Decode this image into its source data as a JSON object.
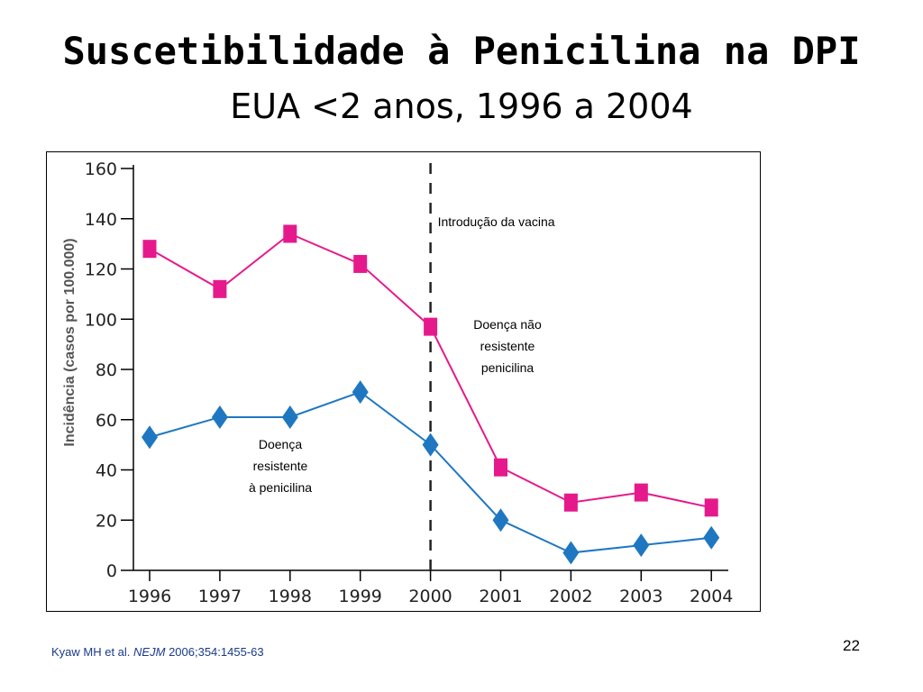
{
  "slide": {
    "title": "Suscetibilidade à Penicilina na DPI",
    "subtitle": "EUA <2 anos, 1996 a 2004",
    "page_number": "22",
    "citation": {
      "authors": "Kyaw MH et al.",
      "journal": "NEJM",
      "details": "2006;354:1455-63"
    }
  },
  "chart_data": {
    "type": "line",
    "title": "",
    "xlabel": "",
    "ylabel": "Incidência (casos por 100.000)",
    "x": [
      "1996",
      "1997",
      "1998",
      "1999",
      "2000",
      "2001",
      "2002",
      "2003",
      "2004"
    ],
    "ylim": [
      0,
      160
    ],
    "yticks": [
      "0",
      "20",
      "40",
      "60",
      "80",
      "100",
      "120",
      "140",
      "160"
    ],
    "grid": false,
    "series": [
      {
        "values": [
          128,
          112,
          134,
          122,
          97,
          41,
          27,
          31,
          25
        ],
        "color": "#e6198c",
        "marker": "square"
      },
      {
        "values": [
          53,
          61,
          61,
          71,
          50,
          20,
          7,
          10,
          13
        ],
        "color": "#1f77c1",
        "marker": "diamond"
      }
    ],
    "vline": {
      "x": "2000",
      "label": "Introdução da vacina"
    },
    "annotations": [
      {
        "lines": [
          "Doença não",
          "resistente",
          "penicilina"
        ]
      },
      {
        "lines": [
          "Doença",
          "resistente",
          "à penicilina"
        ]
      }
    ]
  }
}
